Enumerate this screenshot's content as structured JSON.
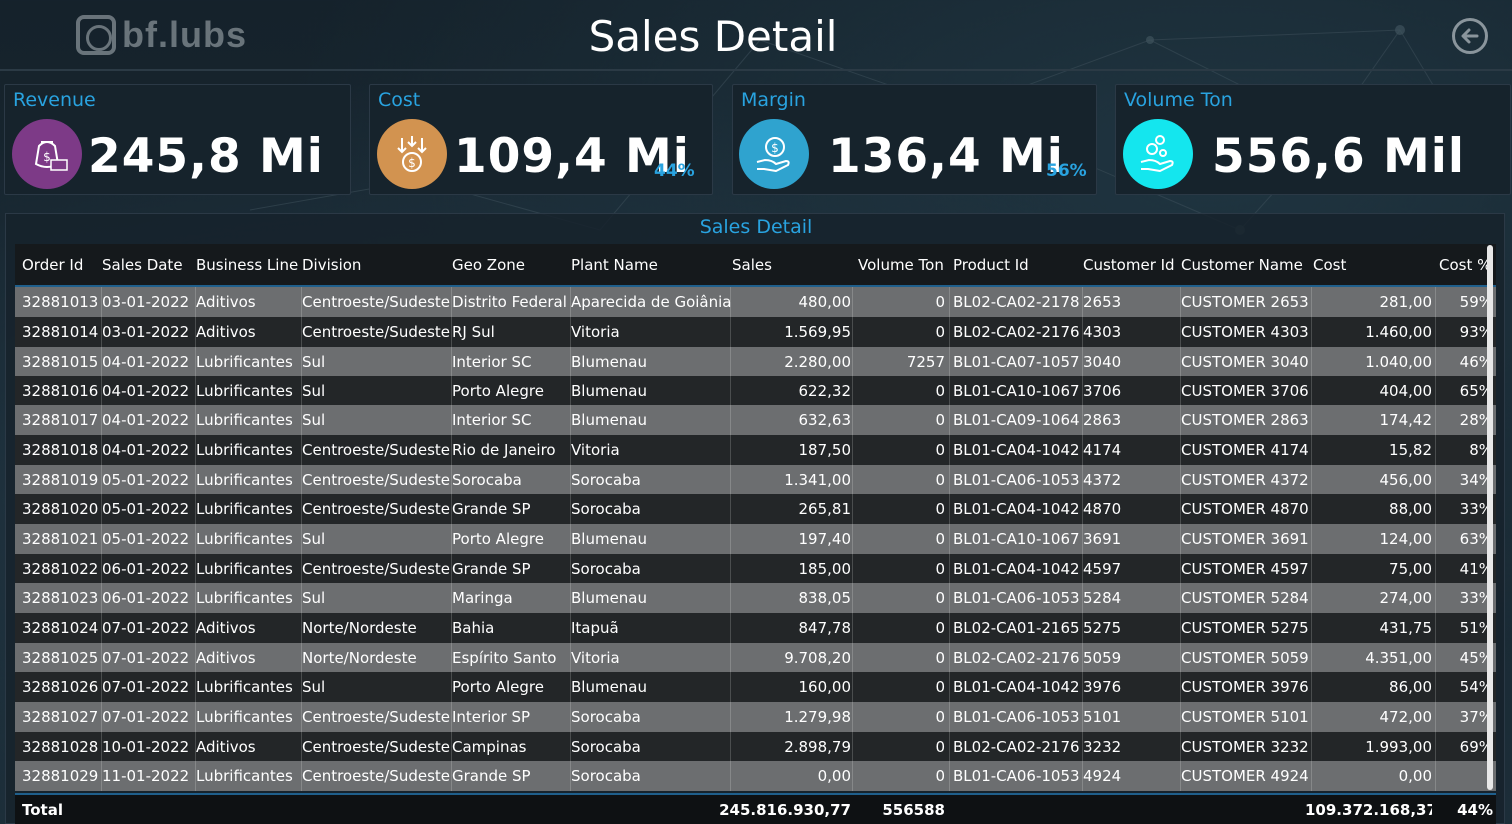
{
  "header": {
    "logo_text": "bf.lubs",
    "title": "Sales Detail",
    "back_icon": "arrow-left-circle-icon"
  },
  "kpis": [
    {
      "label": "Revenue",
      "value": "245,8 Mi",
      "pct": "",
      "icon": "money-bag-icon",
      "color": "#7d3a87"
    },
    {
      "label": "Cost",
      "value": "109,4 Mi",
      "pct": "44%",
      "icon": "coins-down-icon",
      "color": "#d29350"
    },
    {
      "label": "Margin",
      "value": "136,4 Mi",
      "pct": "56%",
      "icon": "hand-dollar-icon",
      "color": "#2fa3cf"
    },
    {
      "label": "Volume Ton",
      "value": "556,6 Mil",
      "pct": "",
      "icon": "hand-bubbles-icon",
      "color": "#14e6ee"
    }
  ],
  "table": {
    "title": "Sales Detail",
    "columns": [
      "Order Id",
      "Sales Date",
      "Business Line",
      "Division",
      "Geo Zone",
      "Plant Name",
      "Sales",
      "Volume Ton",
      "Product Id",
      "Customer Id",
      "Customer Name",
      "Cost",
      "Cost %"
    ],
    "rows": [
      [
        "32881013",
        "03-01-2022",
        "Aditivos",
        "Centroeste/Sudeste",
        "Distrito Federal",
        "Aparecida de Goiânia",
        "480,00",
        "0",
        "BL02-CA02-2178",
        "2653",
        "CUSTOMER 2653",
        "281,00",
        "59%"
      ],
      [
        "32881014",
        "03-01-2022",
        "Aditivos",
        "Centroeste/Sudeste",
        "RJ Sul",
        "Vitoria",
        "1.569,95",
        "0",
        "BL02-CA02-2176",
        "4303",
        "CUSTOMER 4303",
        "1.460,00",
        "93%"
      ],
      [
        "32881015",
        "04-01-2022",
        "Lubrificantes",
        "Sul",
        "Interior SC",
        "Blumenau",
        "2.280,00",
        "7257",
        "BL01-CA07-1057",
        "3040",
        "CUSTOMER 3040",
        "1.040,00",
        "46%"
      ],
      [
        "32881016",
        "04-01-2022",
        "Lubrificantes",
        "Sul",
        "Porto Alegre",
        "Blumenau",
        "622,32",
        "0",
        "BL01-CA10-1067",
        "3706",
        "CUSTOMER 3706",
        "404,00",
        "65%"
      ],
      [
        "32881017",
        "04-01-2022",
        "Lubrificantes",
        "Sul",
        "Interior SC",
        "Blumenau",
        "632,63",
        "0",
        "BL01-CA09-1064",
        "2863",
        "CUSTOMER 2863",
        "174,42",
        "28%"
      ],
      [
        "32881018",
        "04-01-2022",
        "Lubrificantes",
        "Centroeste/Sudeste",
        "Rio de Janeiro",
        "Vitoria",
        "187,50",
        "0",
        "BL01-CA04-1042",
        "4174",
        "CUSTOMER 4174",
        "15,82",
        "8%"
      ],
      [
        "32881019",
        "05-01-2022",
        "Lubrificantes",
        "Centroeste/Sudeste",
        "Sorocaba",
        "Sorocaba",
        "1.341,00",
        "0",
        "BL01-CA06-1053",
        "4372",
        "CUSTOMER 4372",
        "456,00",
        "34%"
      ],
      [
        "32881020",
        "05-01-2022",
        "Lubrificantes",
        "Centroeste/Sudeste",
        "Grande SP",
        "Sorocaba",
        "265,81",
        "0",
        "BL01-CA04-1042",
        "4870",
        "CUSTOMER 4870",
        "88,00",
        "33%"
      ],
      [
        "32881021",
        "05-01-2022",
        "Lubrificantes",
        "Sul",
        "Porto Alegre",
        "Blumenau",
        "197,40",
        "0",
        "BL01-CA10-1067",
        "3691",
        "CUSTOMER 3691",
        "124,00",
        "63%"
      ],
      [
        "32881022",
        "06-01-2022",
        "Lubrificantes",
        "Centroeste/Sudeste",
        "Grande SP",
        "Sorocaba",
        "185,00",
        "0",
        "BL01-CA04-1042",
        "4597",
        "CUSTOMER 4597",
        "75,00",
        "41%"
      ],
      [
        "32881023",
        "06-01-2022",
        "Lubrificantes",
        "Sul",
        "Maringa",
        "Blumenau",
        "838,05",
        "0",
        "BL01-CA06-1053",
        "5284",
        "CUSTOMER 5284",
        "274,00",
        "33%"
      ],
      [
        "32881024",
        "07-01-2022",
        "Aditivos",
        "Norte/Nordeste",
        "Bahia",
        "Itapuã",
        "847,78",
        "0",
        "BL02-CA01-2165",
        "5275",
        "CUSTOMER 5275",
        "431,75",
        "51%"
      ],
      [
        "32881025",
        "07-01-2022",
        "Aditivos",
        "Norte/Nordeste",
        "Espírito Santo",
        "Vitoria",
        "9.708,20",
        "0",
        "BL02-CA02-2176",
        "5059",
        "CUSTOMER 5059",
        "4.351,00",
        "45%"
      ],
      [
        "32881026",
        "07-01-2022",
        "Lubrificantes",
        "Sul",
        "Porto Alegre",
        "Blumenau",
        "160,00",
        "0",
        "BL01-CA04-1042",
        "3976",
        "CUSTOMER 3976",
        "86,00",
        "54%"
      ],
      [
        "32881027",
        "07-01-2022",
        "Lubrificantes",
        "Centroeste/Sudeste",
        "Interior SP",
        "Sorocaba",
        "1.279,98",
        "0",
        "BL01-CA06-1053",
        "5101",
        "CUSTOMER 5101",
        "472,00",
        "37%"
      ],
      [
        "32881028",
        "10-01-2022",
        "Aditivos",
        "Centroeste/Sudeste",
        "Campinas",
        "Sorocaba",
        "2.898,79",
        "0",
        "BL02-CA02-2176",
        "3232",
        "CUSTOMER 3232",
        "1.993,00",
        "69%"
      ],
      [
        "32881029",
        "11-01-2022",
        "Lubrificantes",
        "Centroeste/Sudeste",
        "Grande SP",
        "Sorocaba",
        "0,00",
        "0",
        "BL01-CA06-1053",
        "4924",
        "CUSTOMER 4924",
        "0,00",
        ""
      ]
    ],
    "total": {
      "label": "Total",
      "sales": "245.816.930,77",
      "volume": "556588",
      "cost": "109.372.168,37",
      "cost_pct": "44%"
    }
  }
}
